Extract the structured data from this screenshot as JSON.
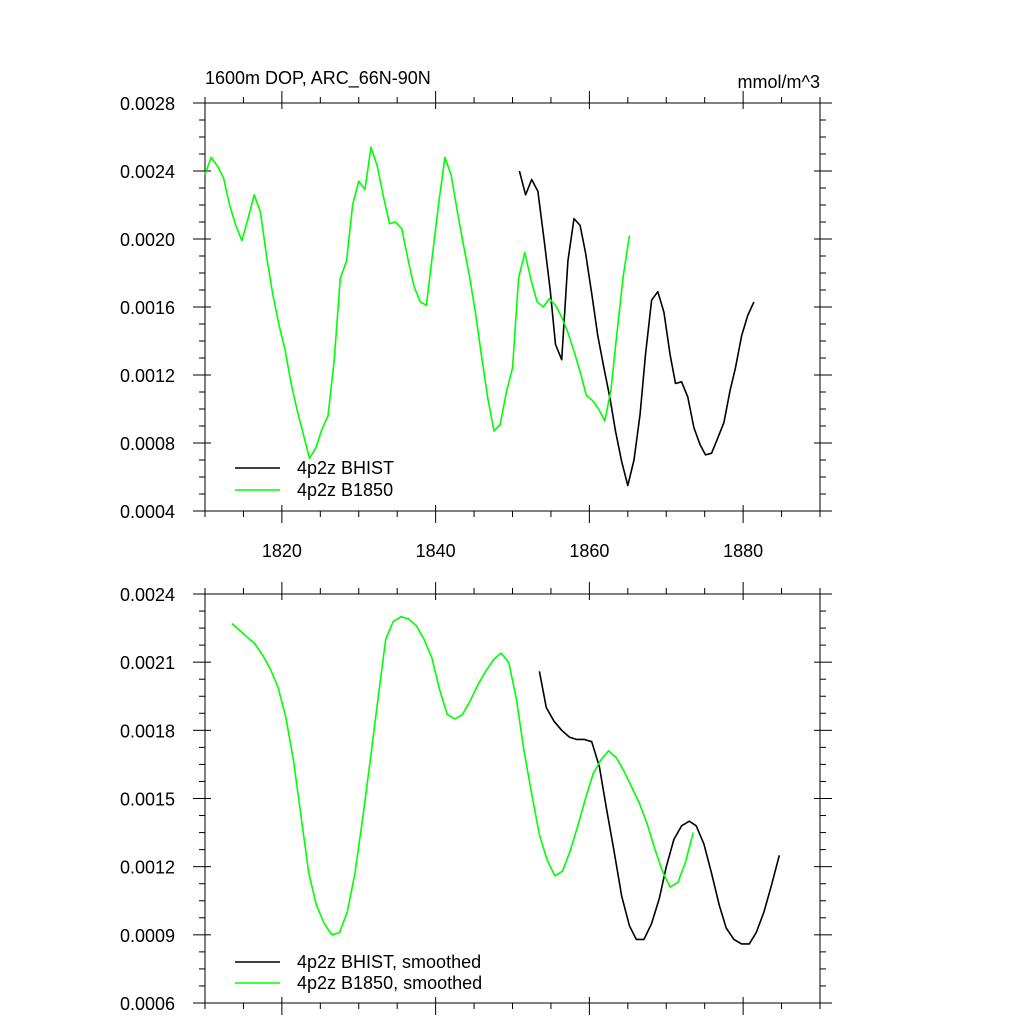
{
  "chart_data": [
    {
      "type": "line",
      "title_left": "1600m DOP, ARC_66N-90N",
      "title_right": "mmol/m^3",
      "xlim": [
        1810,
        1890
      ],
      "ylim": [
        0.0004,
        0.0028
      ],
      "x_tick_values": [
        1820,
        1840,
        1860,
        1880
      ],
      "x_tick_labels": [
        "1820",
        "1840",
        "1860",
        "1880"
      ],
      "y_tick_values": [
        0.0004,
        0.0008,
        0.0012,
        0.0016,
        0.002,
        0.0024,
        0.0028
      ],
      "y_tick_labels": [
        "0.0004",
        "0.0008",
        "0.0012",
        "0.0016",
        "0.0020",
        "0.0024",
        "0.0028"
      ],
      "show_x_tick_labels": true,
      "grid": false,
      "legend_position": "bottom-left",
      "series": [
        {
          "name": "4p2z BHIST",
          "color": "#000000",
          "points": [
            [
              1850.9,
              0.0024
            ],
            [
              1851.7,
              0.00226
            ],
            [
              1852.5,
              0.00235
            ],
            [
              1853.3,
              0.00228
            ],
            [
              1854.1,
              0.002
            ],
            [
              1854.9,
              0.0017
            ],
            [
              1855.6,
              0.00138
            ],
            [
              1856.4,
              0.00129
            ],
            [
              1857.2,
              0.00187
            ],
            [
              1858.0,
              0.00212
            ],
            [
              1858.8,
              0.00208
            ],
            [
              1859.5,
              0.00192
            ],
            [
              1860.3,
              0.00168
            ],
            [
              1861.1,
              0.00143
            ],
            [
              1861.9,
              0.00124
            ],
            [
              1862.7,
              0.00106
            ],
            [
              1863.4,
              0.00087
            ],
            [
              1864.2,
              0.00069
            ],
            [
              1865.0,
              0.00055
            ],
            [
              1865.8,
              0.0007
            ],
            [
              1866.6,
              0.00097
            ],
            [
              1867.3,
              0.00132
            ],
            [
              1868.1,
              0.00164
            ],
            [
              1868.9,
              0.00169
            ],
            [
              1869.7,
              0.00157
            ],
            [
              1870.5,
              0.00132
            ],
            [
              1871.2,
              0.00115
            ],
            [
              1872.0,
              0.00116
            ],
            [
              1872.8,
              0.00107
            ],
            [
              1873.6,
              0.00089
            ],
            [
              1874.4,
              0.00079
            ],
            [
              1875.1,
              0.00073
            ],
            [
              1875.9,
              0.00074
            ],
            [
              1876.7,
              0.00083
            ],
            [
              1877.5,
              0.00092
            ],
            [
              1878.3,
              0.00111
            ],
            [
              1879.0,
              0.00124
            ],
            [
              1879.8,
              0.00143
            ],
            [
              1880.6,
              0.00155
            ],
            [
              1881.4,
              0.00163
            ]
          ]
        },
        {
          "name": "4p2z B1850",
          "color": "#00ff00",
          "points": [
            [
              1810.0,
              0.00238
            ],
            [
              1810.8,
              0.00248
            ],
            [
              1811.6,
              0.00243
            ],
            [
              1812.4,
              0.00236
            ],
            [
              1813.2,
              0.0022
            ],
            [
              1814.0,
              0.00208
            ],
            [
              1814.8,
              0.00199
            ],
            [
              1815.6,
              0.00212
            ],
            [
              1816.4,
              0.00226
            ],
            [
              1817.2,
              0.00216
            ],
            [
              1818.0,
              0.0019
            ],
            [
              1818.8,
              0.00168
            ],
            [
              1819.6,
              0.0015
            ],
            [
              1820.4,
              0.00135
            ],
            [
              1821.2,
              0.00115
            ],
            [
              1822.0,
              0.00099
            ],
            [
              1822.8,
              0.00085
            ],
            [
              1823.6,
              0.00071
            ],
            [
              1824.4,
              0.00077
            ],
            [
              1825.2,
              0.00088
            ],
            [
              1826.0,
              0.00096
            ],
            [
              1826.8,
              0.00128
            ],
            [
              1827.6,
              0.00177
            ],
            [
              1828.4,
              0.00187
            ],
            [
              1829.2,
              0.0022
            ],
            [
              1830.0,
              0.00234
            ],
            [
              1830.8,
              0.00229
            ],
            [
              1831.6,
              0.00254
            ],
            [
              1832.4,
              0.00243
            ],
            [
              1833.2,
              0.00225
            ],
            [
              1834.0,
              0.00209
            ],
            [
              1834.8,
              0.0021
            ],
            [
              1835.6,
              0.00206
            ],
            [
              1836.4,
              0.00188
            ],
            [
              1837.2,
              0.00172
            ],
            [
              1838.0,
              0.00163
            ],
            [
              1838.8,
              0.00161
            ],
            [
              1839.6,
              0.00191
            ],
            [
              1840.4,
              0.00221
            ],
            [
              1841.2,
              0.00248
            ],
            [
              1842.0,
              0.00238
            ],
            [
              1842.8,
              0.00217
            ],
            [
              1843.6,
              0.00197
            ],
            [
              1844.4,
              0.00178
            ],
            [
              1845.2,
              0.00156
            ],
            [
              1846.0,
              0.0013
            ],
            [
              1846.8,
              0.00106
            ],
            [
              1847.6,
              0.00087
            ],
            [
              1848.4,
              0.00091
            ],
            [
              1849.2,
              0.0011
            ],
            [
              1850.0,
              0.00124
            ],
            [
              1850.8,
              0.00177
            ],
            [
              1851.6,
              0.00192
            ],
            [
              1852.4,
              0.00176
            ],
            [
              1853.2,
              0.00163
            ],
            [
              1854.0,
              0.0016
            ],
            [
              1854.8,
              0.00165
            ],
            [
              1855.6,
              0.00161
            ],
            [
              1856.4,
              0.00154
            ],
            [
              1857.2,
              0.00145
            ],
            [
              1858.0,
              0.00134
            ],
            [
              1858.8,
              0.00122
            ],
            [
              1859.6,
              0.00108
            ],
            [
              1860.4,
              0.00105
            ],
            [
              1861.2,
              0.001
            ],
            [
              1862.0,
              0.00093
            ],
            [
              1862.8,
              0.00111
            ],
            [
              1863.6,
              0.00145
            ],
            [
              1864.4,
              0.00178
            ],
            [
              1865.2,
              0.00202
            ]
          ]
        }
      ]
    },
    {
      "type": "line",
      "xlim": [
        1810,
        1890
      ],
      "ylim": [
        0.0006,
        0.0024
      ],
      "x_tick_values": [
        1820,
        1840,
        1860,
        1880
      ],
      "x_tick_labels": [],
      "y_tick_values": [
        0.0006,
        0.0009,
        0.0012,
        0.0015,
        0.0018,
        0.0021,
        0.0024
      ],
      "y_tick_labels": [
        "0.0006",
        "0.0009",
        "0.0012",
        "0.0015",
        "0.0018",
        "0.0021",
        "0.0024"
      ],
      "show_x_tick_labels": false,
      "grid": false,
      "legend_position": "bottom-left",
      "series": [
        {
          "name": "4p2z BHIST, smoothed",
          "color": "#000000",
          "points": [
            [
              1853.5,
              0.00206
            ],
            [
              1854.4,
              0.0019
            ],
            [
              1855.4,
              0.00184
            ],
            [
              1856.4,
              0.0018
            ],
            [
              1857.4,
              0.00177
            ],
            [
              1858.3,
              0.00176
            ],
            [
              1859.3,
              0.00176
            ],
            [
              1860.3,
              0.00175
            ],
            [
              1861.3,
              0.00164
            ],
            [
              1862.2,
              0.00146
            ],
            [
              1863.2,
              0.00127
            ],
            [
              1864.2,
              0.00107
            ],
            [
              1865.2,
              0.00094
            ],
            [
              1866.1,
              0.00088
            ],
            [
              1867.1,
              0.00088
            ],
            [
              1868.1,
              0.00095
            ],
            [
              1869.1,
              0.00106
            ],
            [
              1870.0,
              0.0012
            ],
            [
              1871.0,
              0.00132
            ],
            [
              1872.0,
              0.00138
            ],
            [
              1873.0,
              0.0014
            ],
            [
              1873.9,
              0.00138
            ],
            [
              1874.9,
              0.0013
            ],
            [
              1875.9,
              0.00117
            ],
            [
              1876.9,
              0.00103
            ],
            [
              1877.8,
              0.00093
            ],
            [
              1878.8,
              0.00088
            ],
            [
              1879.8,
              0.00086
            ],
            [
              1880.8,
              0.00086
            ],
            [
              1881.7,
              0.00091
            ],
            [
              1882.7,
              0.001
            ],
            [
              1883.7,
              0.00112
            ],
            [
              1884.7,
              0.00125
            ]
          ]
        },
        {
          "name": "4p2z B1850, smoothed",
          "color": "#00ff00",
          "points": [
            [
              1813.5,
              0.00227
            ],
            [
              1814.5,
              0.00224
            ],
            [
              1815.5,
              0.00221
            ],
            [
              1816.5,
              0.00218
            ],
            [
              1817.5,
              0.00213
            ],
            [
              1818.5,
              0.00207
            ],
            [
              1819.5,
              0.00199
            ],
            [
              1820.5,
              0.00186
            ],
            [
              1821.5,
              0.00167
            ],
            [
              1822.5,
              0.00142
            ],
            [
              1823.5,
              0.00117
            ],
            [
              1824.5,
              0.00103
            ],
            [
              1825.5,
              0.00095
            ],
            [
              1826.5,
              0.0009
            ],
            [
              1827.5,
              0.00091
            ],
            [
              1828.5,
              0.001
            ],
            [
              1829.5,
              0.00117
            ],
            [
              1830.5,
              0.00141
            ],
            [
              1831.5,
              0.00167
            ],
            [
              1832.5,
              0.00194
            ],
            [
              1833.5,
              0.0022
            ],
            [
              1834.5,
              0.00228
            ],
            [
              1835.5,
              0.0023
            ],
            [
              1836.5,
              0.00229
            ],
            [
              1837.5,
              0.00226
            ],
            [
              1838.5,
              0.0022
            ],
            [
              1839.5,
              0.00212
            ],
            [
              1840.5,
              0.00198
            ],
            [
              1841.5,
              0.00187
            ],
            [
              1842.5,
              0.00185
            ],
            [
              1843.5,
              0.00187
            ],
            [
              1844.5,
              0.00193
            ],
            [
              1845.5,
              0.002
            ],
            [
              1846.5,
              0.00206
            ],
            [
              1847.5,
              0.00211
            ],
            [
              1848.5,
              0.00214
            ],
            [
              1849.5,
              0.0021
            ],
            [
              1850.5,
              0.00194
            ],
            [
              1851.5,
              0.00171
            ],
            [
              1852.5,
              0.00152
            ],
            [
              1853.5,
              0.00134
            ],
            [
              1854.5,
              0.00123
            ],
            [
              1855.5,
              0.00116
            ],
            [
              1856.5,
              0.00118
            ],
            [
              1857.5,
              0.00127
            ],
            [
              1858.5,
              0.00138
            ],
            [
              1859.5,
              0.0015
            ],
            [
              1860.5,
              0.00161
            ],
            [
              1861.5,
              0.00167
            ],
            [
              1862.5,
              0.00171
            ],
            [
              1863.5,
              0.00168
            ],
            [
              1864.5,
              0.00162
            ],
            [
              1865.5,
              0.00155
            ],
            [
              1866.5,
              0.00148
            ],
            [
              1867.5,
              0.00139
            ],
            [
              1868.5,
              0.00128
            ],
            [
              1869.5,
              0.00118
            ],
            [
              1870.5,
              0.00111
            ],
            [
              1871.5,
              0.00113
            ],
            [
              1872.5,
              0.00122
            ],
            [
              1873.5,
              0.00135
            ]
          ]
        }
      ]
    }
  ]
}
